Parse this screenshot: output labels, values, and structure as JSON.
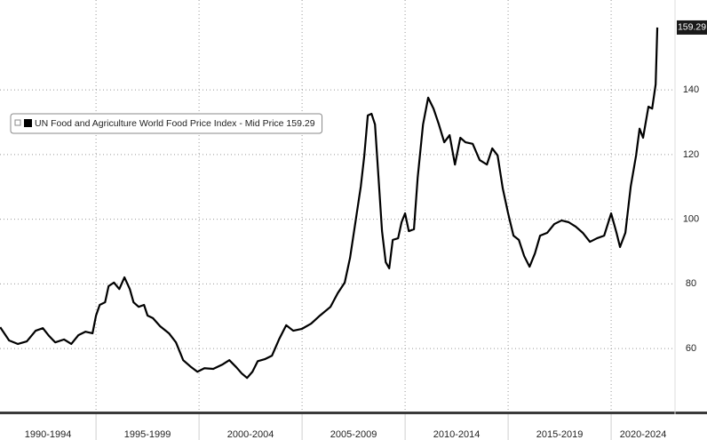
{
  "chart_data": {
    "type": "line",
    "series": [
      {
        "name": "UN Food and Agriculture World Food Price Index - Mid Price 159.29",
        "color": "#000000",
        "x": [
          1990.35,
          1990.78,
          1991.21,
          1991.64,
          1992.07,
          1992.42,
          1992.72,
          1993.02,
          1993.45,
          1993.8,
          1994.14,
          1994.49,
          1994.83,
          1995.0,
          1995.18,
          1995.44,
          1995.61,
          1995.87,
          1996.13,
          1996.38,
          1996.64,
          1996.82,
          1997.07,
          1997.33,
          1997.5,
          1997.76,
          1998.11,
          1998.54,
          1998.88,
          1999.23,
          1999.57,
          1999.92,
          2000.26,
          2000.69,
          2001.12,
          2001.47,
          2001.81,
          2002.07,
          2002.33,
          2002.59,
          2002.85,
          2003.19,
          2003.54,
          2003.88,
          2004.23,
          2004.57,
          2005.0,
          2005.44,
          2005.87,
          2006.38,
          2006.73,
          2007.07,
          2007.33,
          2007.59,
          2007.85,
          2008.02,
          2008.19,
          2008.37,
          2008.54,
          2008.71,
          2008.88,
          2009.06,
          2009.23,
          2009.4,
          2009.66,
          2009.83,
          2010.0,
          2010.18,
          2010.43,
          2010.61,
          2010.87,
          2011.12,
          2011.38,
          2011.64,
          2011.9,
          2012.16,
          2012.42,
          2012.68,
          2012.93,
          2013.28,
          2013.62,
          2013.97,
          2014.23,
          2014.49,
          2014.74,
          2015.0,
          2015.26,
          2015.52,
          2015.78,
          2016.04,
          2016.3,
          2016.55,
          2016.9,
          2017.24,
          2017.59,
          2017.93,
          2018.28,
          2018.62,
          2018.97,
          2019.31,
          2019.66,
          2020.0,
          2020.26,
          2020.43,
          2020.69,
          2020.95,
          2021.21,
          2021.38,
          2021.55,
          2021.81,
          2021.99,
          2022.16,
          2022.24
        ],
        "values": [
          66.6,
          62.5,
          61.4,
          62.2,
          65.5,
          66.3,
          63.9,
          61.9,
          62.8,
          61.4,
          64.1,
          65.2,
          64.7,
          70.2,
          73.5,
          74.3,
          79.3,
          80.4,
          78.4,
          82.0,
          78.4,
          74.3,
          72.9,
          73.5,
          70.2,
          69.4,
          66.9,
          64.7,
          61.9,
          56.4,
          54.5,
          52.8,
          53.9,
          53.7,
          55.0,
          56.4,
          54.2,
          52.3,
          50.9,
          52.8,
          56.1,
          56.7,
          57.8,
          62.8,
          67.2,
          65.5,
          66.1,
          67.7,
          70.2,
          72.9,
          77.1,
          80.4,
          88.1,
          99.1,
          110.1,
          119.7,
          132.1,
          132.6,
          129.3,
          112.8,
          96.3,
          86.7,
          84.8,
          93.6,
          94.1,
          99.1,
          101.8,
          96.3,
          96.9,
          112.8,
          129.3,
          137.6,
          134.2,
          129.3,
          123.8,
          126.0,
          116.9,
          125.2,
          123.8,
          123.3,
          118.3,
          116.9,
          121.9,
          119.7,
          109.5,
          101.8,
          94.9,
          93.6,
          88.6,
          85.3,
          89.4,
          94.9,
          95.8,
          98.5,
          99.6,
          99.1,
          97.7,
          95.8,
          93.0,
          94.1,
          94.9,
          101.8,
          95.8,
          91.4,
          95.8,
          110.1,
          119.7,
          128.0,
          125.2,
          134.8,
          134.2,
          141.7,
          159.29
        ]
      }
    ],
    "last_label": "159.29",
    "periods": [
      "1990-1994",
      "1995-1999",
      "2000-2004",
      "2005-2009",
      "2010-2014",
      "2015-2019",
      "2020-2024"
    ],
    "xlim": [
      1990.34,
      2023.1
    ],
    "xticks": [
      1995,
      2000,
      2005,
      2010,
      2015,
      2020
    ],
    "ylim": [
      40.5,
      167.8
    ],
    "yticks": [
      60,
      80,
      100,
      120,
      140
    ],
    "grid": true
  }
}
